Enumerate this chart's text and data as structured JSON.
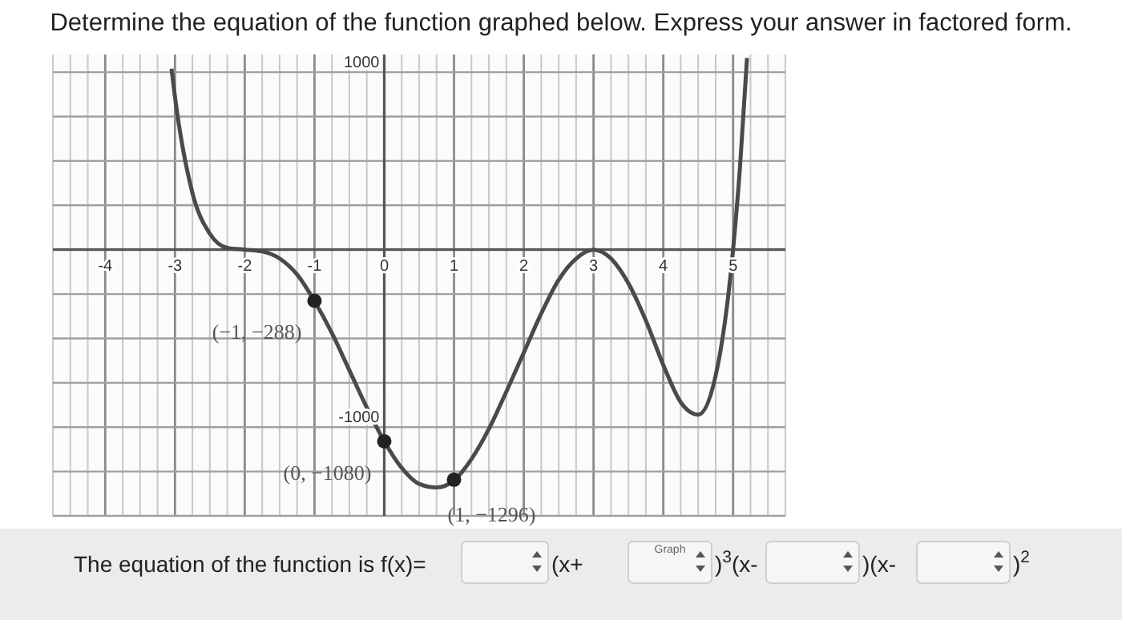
{
  "chart_data": {
    "type": "line",
    "title": "Determine the equation of the function graphed below. Express your answer in factored form.",
    "x": [
      -3.05,
      -3,
      -2.75,
      -2.5,
      -2.25,
      -2,
      -1.75,
      -1.5,
      -1.25,
      -1,
      -0.75,
      -0.5,
      -0.25,
      0,
      0.25,
      0.5,
      0.75,
      1,
      1.25,
      1.5,
      1.75,
      2,
      2.25,
      2.5,
      2.75,
      3,
      3.25,
      3.5,
      3.75,
      4,
      4.25,
      4.5,
      4.75,
      5,
      5.1,
      5.2
    ],
    "series": [
      {
        "color": "#4a4a4a",
        "values": [
          1020,
          860,
          320,
          90,
          10,
          0,
          -10,
          -50,
          -140,
          -290,
          -470,
          -680,
          -890,
          -1080,
          -1230,
          -1320,
          -1340,
          -1300,
          -1180,
          -1010,
          -800,
          -580,
          -360,
          -170,
          -50,
          0,
          -50,
          -190,
          -400,
          -650,
          -860,
          -930,
          -710,
          0,
          470,
          1080
        ]
      },
      {
        "type": "scatter",
        "color": "#222222",
        "x": [
          -1,
          0,
          1
        ],
        "values": [
          -288,
          -1080,
          -1296
        ],
        "marker": "circle"
      }
    ],
    "xlim": [
      -4.75,
      5.75
    ],
    "xticks": [
      {
        "value": -4.75,
        "label": null
      },
      {
        "value": -4.5,
        "label": null
      },
      {
        "value": -4.25,
        "label": null
      },
      -4,
      {
        "value": -3.75,
        "label": null
      },
      {
        "value": -3.5,
        "label": null
      },
      {
        "value": -3.25,
        "label": null
      },
      -3,
      {
        "value": -2.75,
        "label": null
      },
      {
        "value": -2.5,
        "label": null
      },
      {
        "value": -2.25,
        "label": null
      },
      -2,
      {
        "value": -1.75,
        "label": null
      },
      {
        "value": -1.5,
        "label": null
      },
      {
        "value": -1.25,
        "label": null
      },
      -1,
      {
        "value": -0.75,
        "label": null
      },
      {
        "value": -0.5,
        "label": null
      },
      {
        "value": -0.25,
        "label": null
      },
      0,
      {
        "value": 0.25,
        "label": null
      },
      {
        "value": 0.5,
        "label": null
      },
      {
        "value": 0.75,
        "label": null
      },
      1,
      {
        "value": 1.25,
        "label": null
      },
      {
        "value": 1.5,
        "label": null
      },
      {
        "value": 1.75,
        "label": null
      },
      2,
      {
        "value": 2.25,
        "label": null
      },
      {
        "value": 2.5,
        "label": null
      },
      {
        "value": 2.75,
        "label": null
      },
      3,
      {
        "value": 3.25,
        "label": null
      },
      {
        "value": 3.5,
        "label": null
      },
      {
        "value": 3.75,
        "label": null
      },
      4,
      {
        "value": 4.25,
        "label": null
      },
      {
        "value": 4.5,
        "label": null
      },
      {
        "value": 4.75,
        "label": null
      },
      5,
      {
        "value": 5.25,
        "label": null
      },
      {
        "value": 5.5,
        "label": null
      },
      {
        "value": 5.75,
        "label": null
      }
    ],
    "ylim": [
      -1500,
      1100
    ],
    "yticks": [
      {
        "value": -1500,
        "label": null
      },
      {
        "value": -1250,
        "label": null
      },
      -1000,
      {
        "value": -750,
        "label": null
      },
      {
        "value": -500,
        "label": null
      },
      {
        "value": -250,
        "label": null
      },
      {
        "value": 0,
        "label": null
      },
      {
        "value": 250,
        "label": null
      },
      {
        "value": 500,
        "label": null
      },
      {
        "value": 750,
        "label": null
      },
      1000
    ],
    "grid": true,
    "line_style": "solid",
    "marker": "none",
    "annotations": [
      {
        "text": "(−1, −288)",
        "x": -1,
        "y": -288
      },
      {
        "text": "(0, −1080)",
        "x": 0,
        "y": -1080
      },
      {
        "text": "(1, −1296)",
        "x": 1,
        "y": -1296
      },
      "The equation of the function is f(x)=",
      "(x+",
      ")$^{3}$(x-",
      ")(x-",
      ")$^{2}$",
      "Graph"
    ]
  }
}
